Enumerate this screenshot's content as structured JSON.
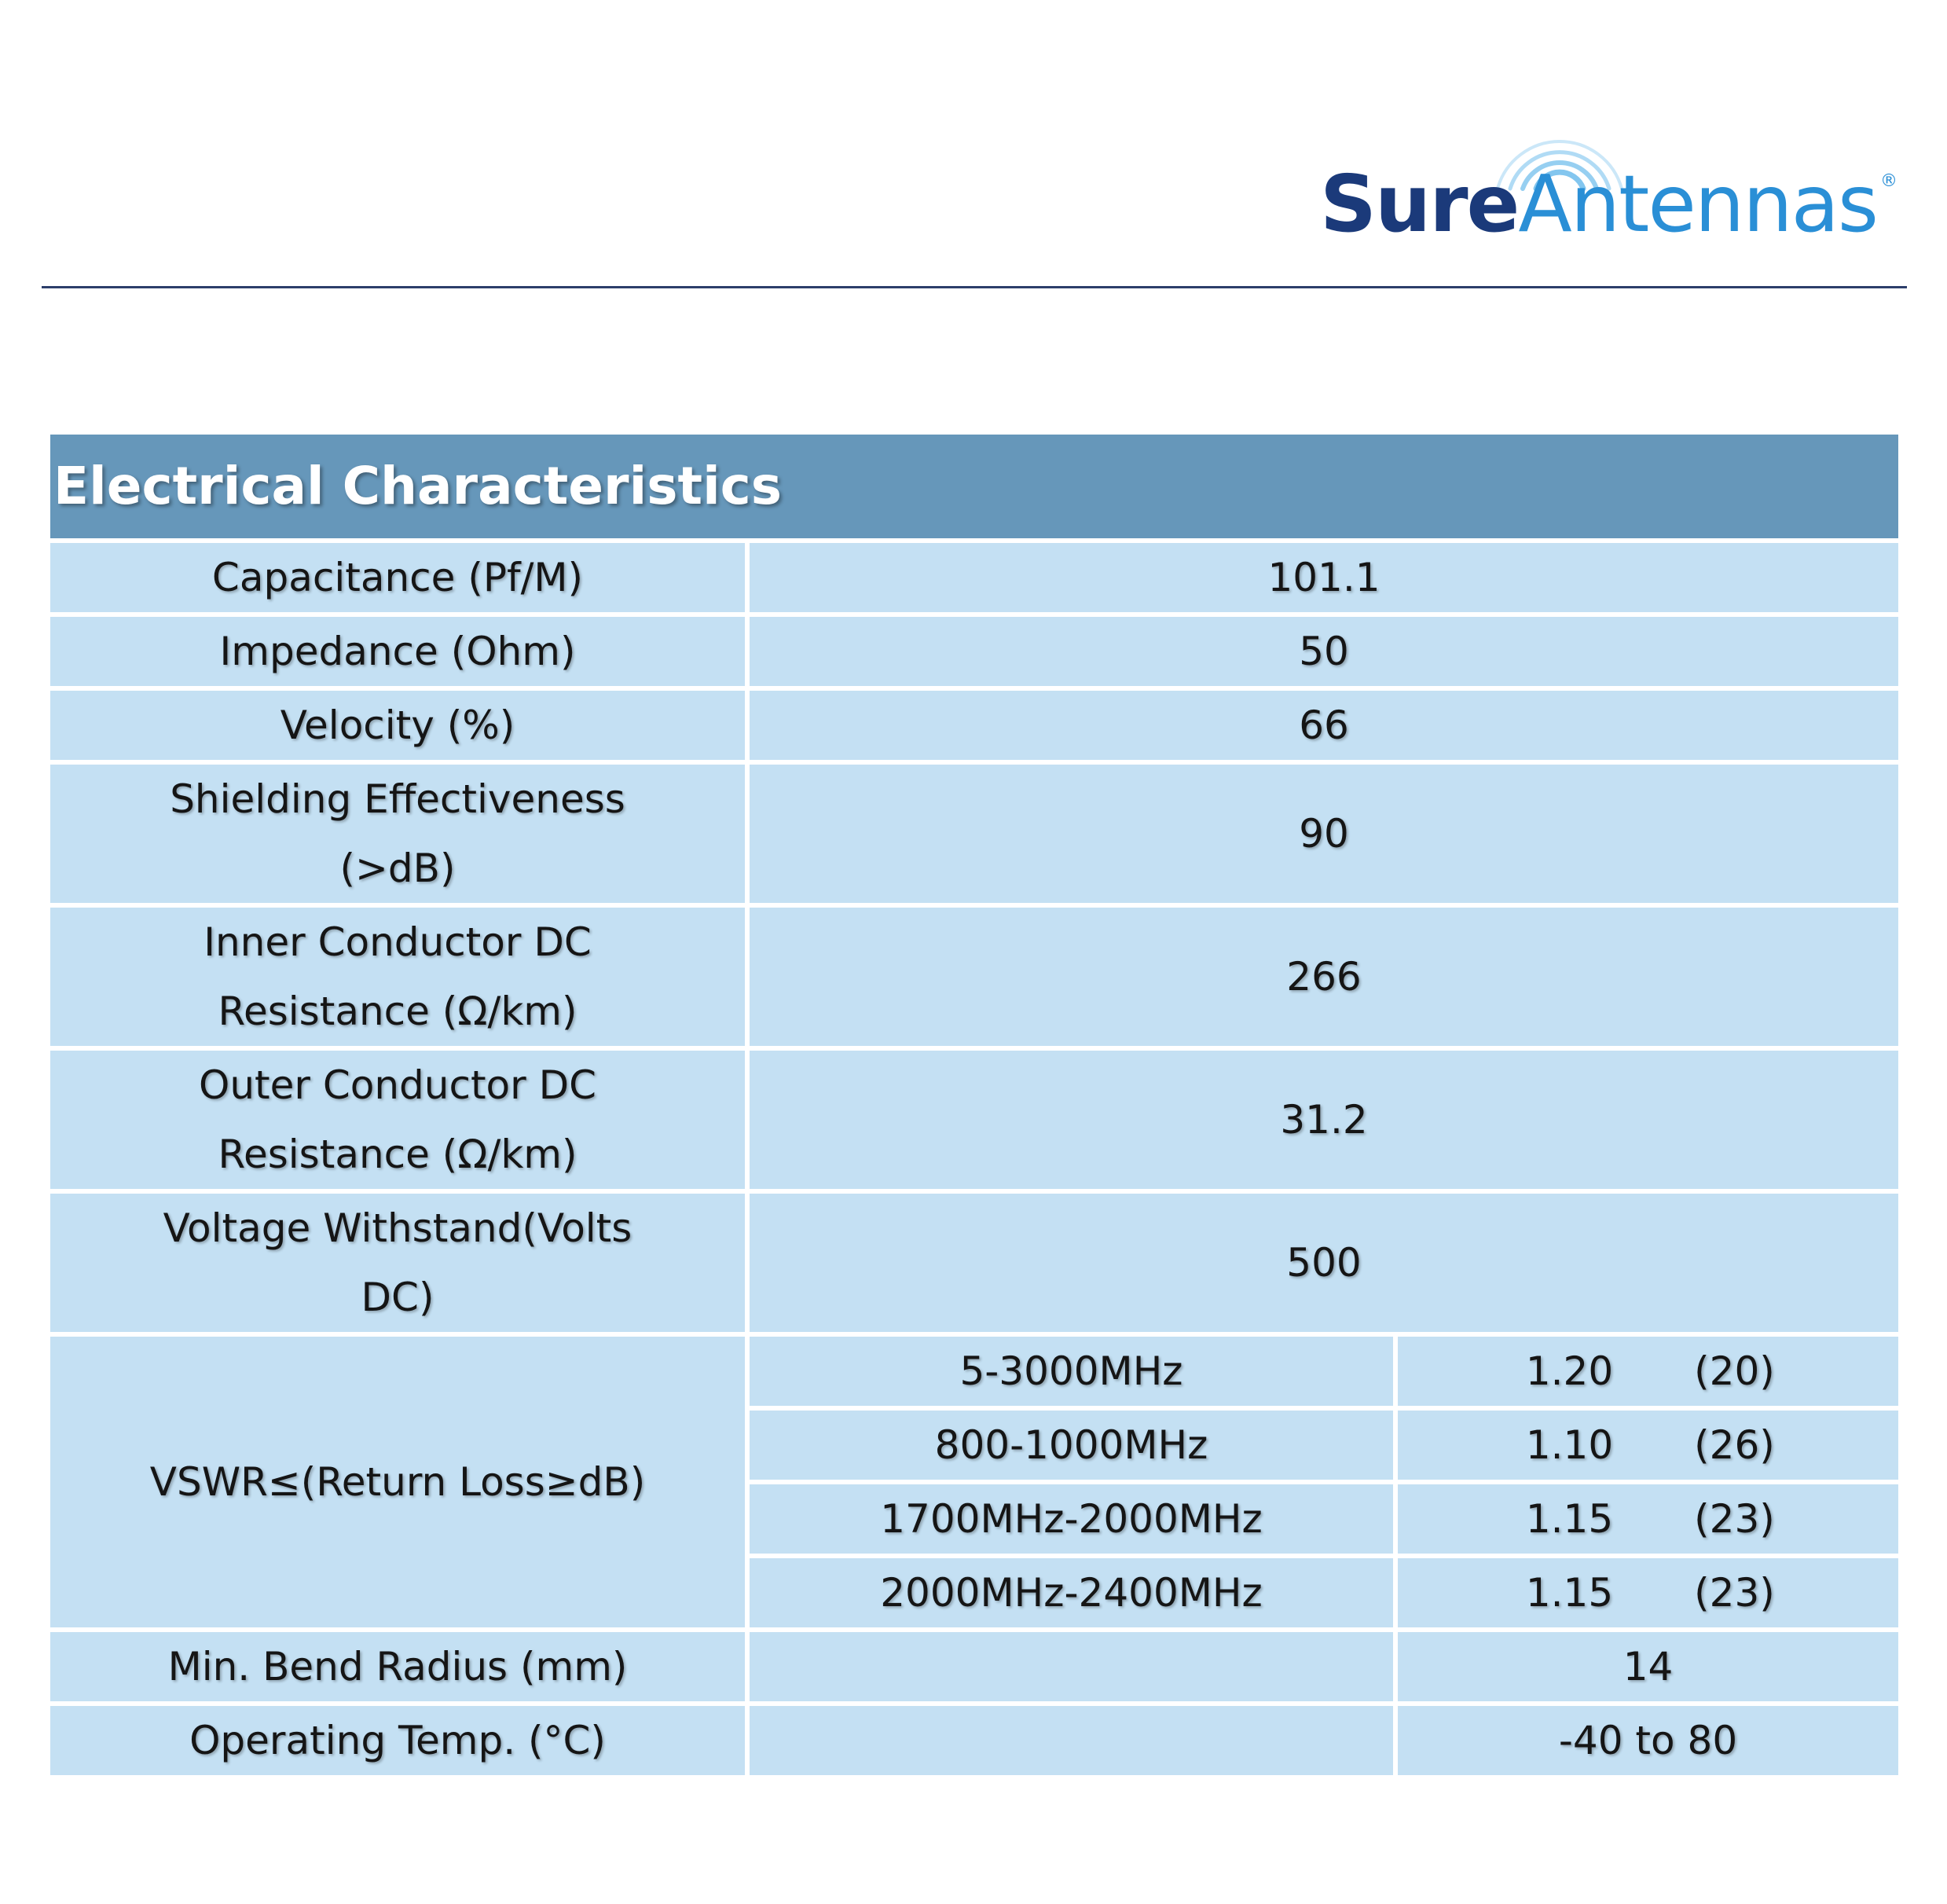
{
  "brand": {
    "name_bold": "Sure",
    "name_light": "Antennas",
    "registered_mark": "®",
    "waves_icon": "signal-waves-icon",
    "colors": {
      "dark": "#1b3a7a",
      "light": "#2a8fd6"
    }
  },
  "table": {
    "title": "Electrical Characteristics",
    "header_color": "#6697ba",
    "cell_color": "#c4e0f3",
    "rows": [
      {
        "label": "Capacitance (Pf/M)",
        "value": "101.1"
      },
      {
        "label": "Impedance (Ohm)",
        "value": "50"
      },
      {
        "label": "Velocity (%)",
        "value": "66"
      },
      {
        "label_lines": [
          "Shielding Effectiveness",
          "(>dB)"
        ],
        "value": "90"
      },
      {
        "label_lines": [
          "Inner Conductor DC",
          "Resistance (Ω/km)"
        ],
        "value": "266"
      },
      {
        "label_lines": [
          "Outer Conductor DC",
          "Resistance (Ω/km)"
        ],
        "value": "31.2"
      },
      {
        "label_lines": [
          "Voltage Withstand(Volts",
          "DC)"
        ],
        "value": "500"
      }
    ],
    "vswr": {
      "label": "VSWR≤(Return Loss≥dB)",
      "bands": [
        {
          "range": "5-3000MHz",
          "vswr": "1.20",
          "return_loss": "(20)"
        },
        {
          "range": "800-1000MHz",
          "vswr": "1.10",
          "return_loss": "(26)"
        },
        {
          "range": "1700MHz-2000MHz",
          "vswr": "1.15",
          "return_loss": "(23)"
        },
        {
          "range": "2000MHz-2400MHz",
          "vswr": "1.15",
          "return_loss": "(23)"
        }
      ]
    },
    "bottom_rows": [
      {
        "label": "Min. Bend Radius (mm)",
        "value": "14"
      },
      {
        "label": "Operating Temp. (°C)",
        "value": "-40 to 80"
      }
    ]
  }
}
